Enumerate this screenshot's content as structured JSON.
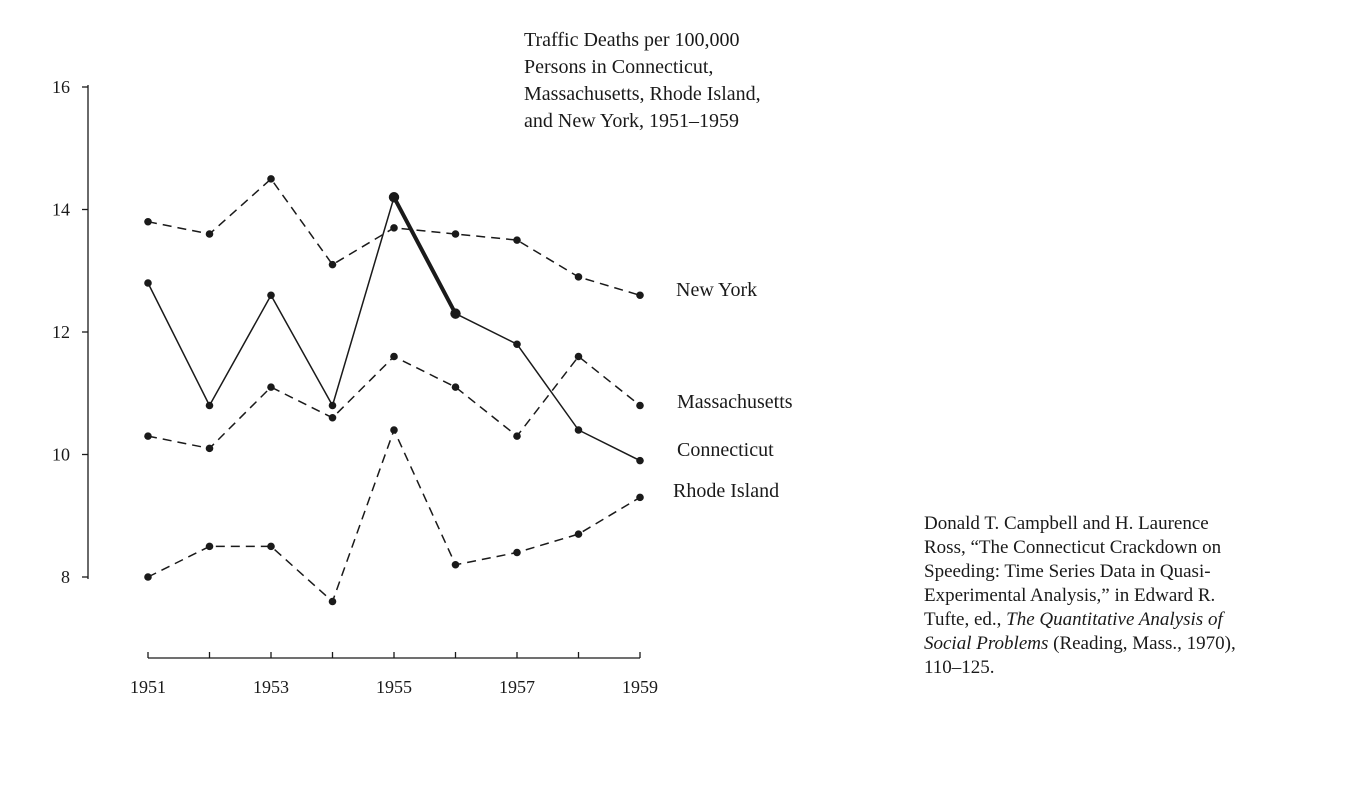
{
  "chart_data": {
    "type": "line",
    "title_lines": [
      "Traffic Deaths per 100,000",
      "Persons in Connecticut,",
      "Massachusetts, Rhode Island,",
      "and New York, 1951–1959"
    ],
    "x": [
      1951,
      1952,
      1953,
      1954,
      1955,
      1956,
      1957,
      1958,
      1959
    ],
    "x_tick_labels": [
      "1951",
      "1953",
      "1955",
      "1957",
      "1959"
    ],
    "x_tick_values": [
      1951,
      1953,
      1955,
      1957,
      1959
    ],
    "y_tick_labels": [
      "8",
      "10",
      "12",
      "14",
      "16"
    ],
    "y_tick_values": [
      8,
      10,
      12,
      14,
      16
    ],
    "ylim": [
      8,
      16
    ],
    "xlim": [
      1951,
      1959
    ],
    "grid": false,
    "legend": "direct labels at right end of each series",
    "series": [
      {
        "name": "New York",
        "style": "dashed",
        "values": [
          13.8,
          13.6,
          14.5,
          13.1,
          13.7,
          13.6,
          13.5,
          12.9,
          12.6
        ]
      },
      {
        "name": "Massachusetts",
        "style": "dashed",
        "values": [
          10.3,
          10.1,
          11.1,
          10.6,
          11.6,
          11.1,
          10.3,
          11.6,
          10.8
        ]
      },
      {
        "name": "Connecticut",
        "style": "solid",
        "values": [
          12.8,
          10.8,
          12.6,
          10.8,
          14.2,
          12.3,
          11.8,
          10.4,
          9.9
        ],
        "emphasis_segment": [
          1955,
          1956
        ]
      },
      {
        "name": "Rhode Island",
        "style": "dashed",
        "values": [
          8.0,
          8.5,
          8.5,
          7.6,
          10.4,
          8.2,
          8.4,
          8.7,
          9.3
        ]
      }
    ]
  },
  "source_note": {
    "lines": [
      {
        "text": "Donald T. Campbell and H. Laurence",
        "italic": false
      },
      {
        "text": "Ross, “The Connecticut Crackdown on",
        "italic": false
      },
      {
        "text": "Speeding: Time Series Data in Quasi-",
        "italic": false
      },
      {
        "text": "Experimental Analysis,” in Edward R.",
        "italic": false
      },
      {
        "text": "Tufte, ed., ",
        "italic": false,
        "tail_italic": "The Quantitative Analysis of"
      },
      {
        "text": "",
        "italic": false,
        "head_italic": "Social Problems",
        "tail": " (Reading, Mass., 1970),"
      },
      {
        "text": "110–125.",
        "italic": false
      }
    ]
  },
  "colors": {
    "ink": "#1a1a1a",
    "background": "#ffffff"
  }
}
